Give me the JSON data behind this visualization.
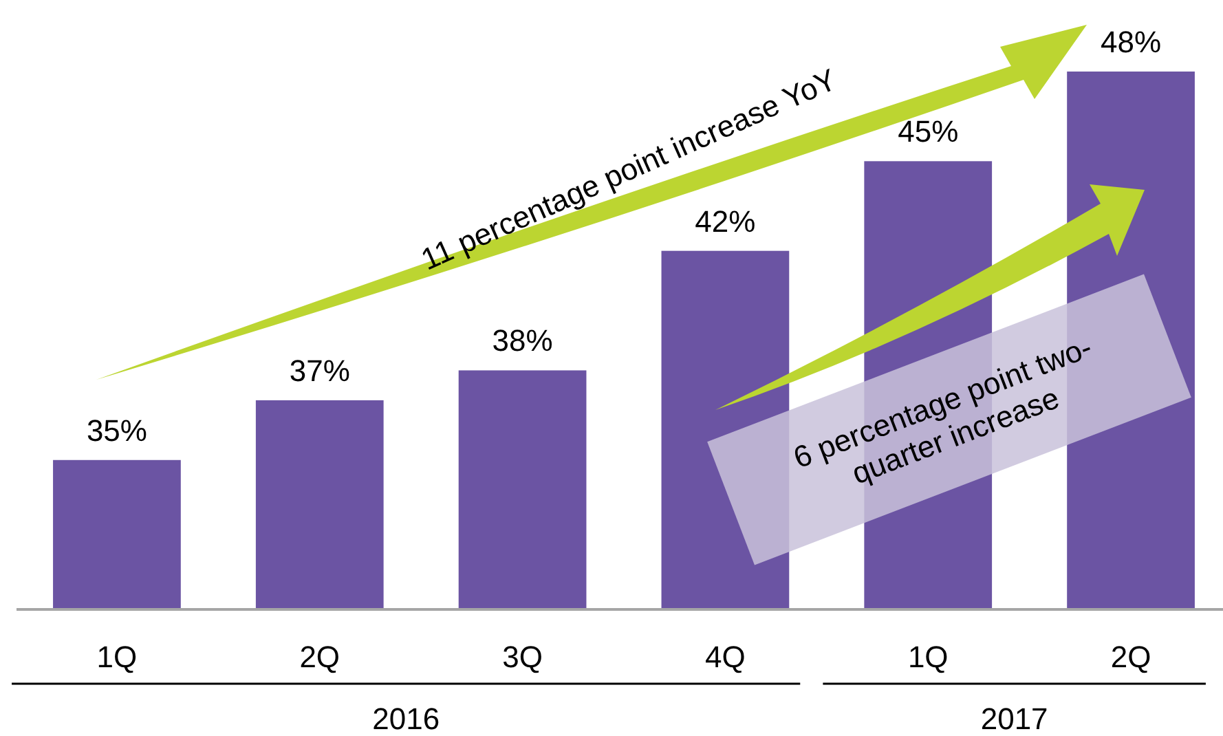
{
  "chart_data": {
    "type": "bar",
    "categories": [
      "1Q",
      "2Q",
      "3Q",
      "4Q",
      "1Q",
      "2Q"
    ],
    "values": [
      35,
      37,
      38,
      42,
      45,
      48
    ],
    "value_labels": [
      "35%",
      "37%",
      "38%",
      "42%",
      "45%",
      "48%"
    ],
    "color": "#6b54a3",
    "ylim": [
      30,
      48
    ],
    "tick_labels": "x",
    "annotations": [
      "2016",
      "2017",
      "11 percentage point increase YoY",
      "6 percentage point two-quarter increase"
    ]
  }
}
